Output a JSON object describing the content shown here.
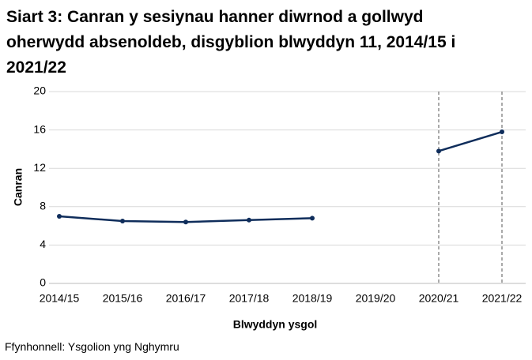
{
  "chart_data": {
    "type": "line",
    "title": "Siart 3: Canran y sesiynau hanner diwrnod a gollwyd oherwydd absenoldeb, disgyblion blwyddyn 11, 2014/15 i 2021/22",
    "x_label": "Blwyddyn ysgol",
    "y_label": "Canran",
    "source": "Ffynhonnell: Ysgolion yng Nghymru",
    "categories": [
      "2014/15",
      "2015/16",
      "2016/17",
      "2017/18",
      "2018/19",
      "2019/20",
      "2020/21",
      "2021/22"
    ],
    "series": [
      {
        "name": "Canran",
        "color": "#0f2d5b",
        "values": [
          7.0,
          6.5,
          6.4,
          6.6,
          6.8,
          null,
          13.8,
          15.8
        ]
      }
    ],
    "ylim": [
      0,
      20
    ],
    "yticks": [
      0,
      4,
      8,
      12,
      16,
      20
    ],
    "grid": true
  }
}
